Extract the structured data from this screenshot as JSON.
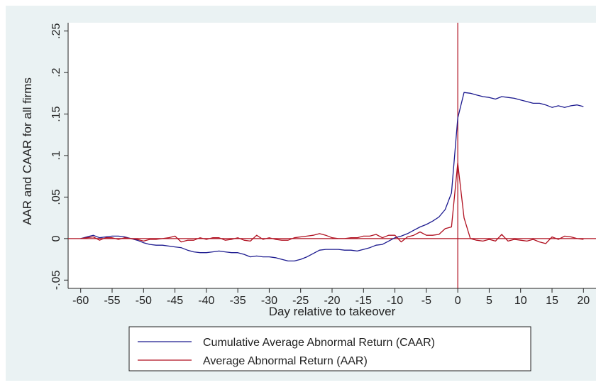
{
  "chart_data": {
    "type": "line",
    "xlabel": "Day relative to takeover",
    "ylabel": "AAR and CAAR for all firms",
    "xlim": [
      -62,
      22
    ],
    "ylim": [
      -0.06,
      0.26
    ],
    "x_ticks": [
      -60,
      -55,
      -50,
      -45,
      -40,
      -35,
      -30,
      -25,
      -20,
      -15,
      -10,
      -5,
      0,
      5,
      10,
      15,
      20
    ],
    "x_tick_labels": [
      "-60",
      "-55",
      "-50",
      "-45",
      "-40",
      "-35",
      "-30",
      "-25",
      "-20",
      "-15",
      "-10",
      "-5",
      "0",
      "5",
      "10",
      "15",
      "20"
    ],
    "y_ticks": [
      -0.05,
      0,
      0.05,
      0.1,
      0.15,
      0.2,
      0.25
    ],
    "y_tick_labels": [
      "-.05",
      "0",
      ".05",
      ".1",
      ".15",
      ".2",
      ".25"
    ],
    "grid": false,
    "reference_lines": {
      "x": 0,
      "y": 0
    },
    "legend_position": "bottom",
    "series": [
      {
        "name": "Cumulative Average Abnormal Return (CAAR)",
        "color": "#1c1a8f",
        "x": [
          -60,
          -58,
          -57,
          -56,
          -55,
          -54,
          -53,
          -52,
          -51,
          -50,
          -49,
          -48,
          -47,
          -46,
          -45,
          -44,
          -43,
          -42,
          -41,
          -40,
          -39,
          -38,
          -37,
          -36,
          -35,
          -34,
          -33,
          -32,
          -31,
          -30,
          -29,
          -28,
          -27,
          -26,
          -25,
          -24,
          -23,
          -22,
          -21,
          -20,
          -19,
          -18,
          -17,
          -16,
          -15,
          -14,
          -13,
          -12,
          -11,
          -10,
          -9,
          -8,
          -7,
          -6,
          -5,
          -4,
          -3,
          -2,
          -1,
          0,
          1,
          2,
          3,
          4,
          5,
          6,
          7,
          8,
          9,
          10,
          11,
          12,
          13,
          14,
          15,
          16,
          17,
          18,
          19,
          20
        ],
        "y": [
          0,
          0.004,
          0.001,
          0.002,
          0.003,
          0.003,
          0.002,
          0,
          -0.002,
          -0.005,
          -0.007,
          -0.008,
          -0.008,
          -0.009,
          -0.01,
          -0.011,
          -0.014,
          -0.016,
          -0.017,
          -0.017,
          -0.016,
          -0.015,
          -0.016,
          -0.017,
          -0.017,
          -0.019,
          -0.022,
          -0.021,
          -0.022,
          -0.022,
          -0.023,
          -0.025,
          -0.027,
          -0.027,
          -0.025,
          -0.022,
          -0.018,
          -0.014,
          -0.013,
          -0.013,
          -0.013,
          -0.014,
          -0.014,
          -0.015,
          -0.013,
          -0.011,
          -0.008,
          -0.007,
          -0.003,
          0.001,
          0.003,
          0.006,
          0.01,
          0.014,
          0.017,
          0.021,
          0.026,
          0.035,
          0.055,
          0.145,
          0.176,
          0.175,
          0.173,
          0.171,
          0.17,
          0.168,
          0.171,
          0.17,
          0.169,
          0.167,
          0.165,
          0.163,
          0.163,
          0.161,
          0.158,
          0.16,
          0.158,
          0.16,
          0.161,
          0.159
        ]
      },
      {
        "name": "Average Abnormal Return (AAR)",
        "color": "#b01020",
        "x": [
          -60,
          -59,
          -58,
          -57,
          -56,
          -55,
          -54,
          -53,
          -52,
          -51,
          -50,
          -49,
          -48,
          -47,
          -46,
          -45,
          -44,
          -43,
          -42,
          -41,
          -40,
          -39,
          -38,
          -37,
          -36,
          -35,
          -34,
          -33,
          -32,
          -31,
          -30,
          -29,
          -28,
          -27,
          -26,
          -25,
          -24,
          -23,
          -22,
          -21,
          -20,
          -19,
          -18,
          -17,
          -16,
          -15,
          -14,
          -13,
          -12,
          -11,
          -10,
          -9,
          -8,
          -7,
          -6,
          -5,
          -4,
          -3,
          -2,
          -1,
          0,
          1,
          2,
          3,
          4,
          5,
          6,
          7,
          8,
          9,
          10,
          11,
          12,
          13,
          14,
          15,
          16,
          17,
          18,
          19,
          20
        ],
        "y": [
          0,
          0.001,
          0.002,
          -0.002,
          0.001,
          0.001,
          -0.001,
          0.001,
          0,
          -0.001,
          -0.003,
          -0.001,
          -0.001,
          0,
          0.001,
          0.003,
          -0.004,
          -0.002,
          -0.002,
          0.001,
          -0.001,
          0.001,
          0.001,
          -0.002,
          -0.001,
          0.001,
          -0.002,
          -0.003,
          0.004,
          -0.001,
          0.001,
          -0.001,
          -0.002,
          -0.002,
          0.001,
          0.002,
          0.003,
          0.004,
          0.006,
          0.004,
          0.001,
          0,
          0,
          0.001,
          0.001,
          0.003,
          0.003,
          0.005,
          0.001,
          0.004,
          0.004,
          -0.004,
          0.002,
          0.004,
          0.008,
          0.004,
          0.004,
          0.005,
          0.012,
          0.014,
          0.091,
          0.025,
          0,
          -0.002,
          -0.003,
          -0.001,
          -0.003,
          0.005,
          -0.003,
          -0.001,
          -0.002,
          -0.003,
          -0.001,
          -0.004,
          -0.006,
          0.002,
          -0.001,
          0.003,
          0.002,
          0,
          -0.001
        ]
      }
    ]
  }
}
